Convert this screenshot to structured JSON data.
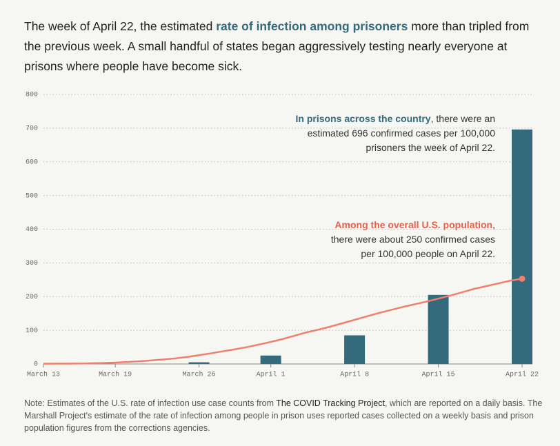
{
  "chart_data": {
    "type": "bar",
    "title": [
      "The week of April 22, the estimated ",
      "rate of infection among prisoners",
      " more than tripled from the previous week. A small handful of states began aggressively testing nearly everyone at prisons where people have become sick."
    ],
    "annotations": [
      [
        "In prisons across the country",
        ", there were an estimated 696 confirmed cases per 100,000 prisoners the week of April 22."
      ],
      [
        "Among the overall U.S. population",
        ", there were about 250 confirmed cases per 100,000 people on April 22."
      ]
    ],
    "note": [
      "Note: Estimates of the U.S. rate of infection use case counts from ",
      "The COVID Tracking Project",
      ", which are reported on a daily basis. The Marshall Project's estimate of the rate of infection among people in prison uses reported cases collected on a weekly basis and prison population figures from the corrections agencies."
    ],
    "xlim": [
      "March 13",
      "April 22"
    ],
    "xticks": [
      "March 13",
      "March 19",
      "March 26",
      "April 1",
      "April 8",
      "April 15",
      "April 22"
    ],
    "ylim": [
      0,
      800
    ],
    "yticks": [
      0,
      100,
      200,
      300,
      400,
      500,
      600,
      700,
      800
    ],
    "grid": true,
    "series": [
      {
        "type": "bar",
        "color": "#336a7c",
        "x": [
          "March 26",
          "April 1",
          "April 8",
          "April 15",
          "April 22"
        ],
        "values": [
          5,
          25,
          85,
          205,
          696
        ]
      },
      {
        "type": "line",
        "color": "#f07f6b",
        "x": [
          "March 13",
          "March 14",
          "March 15",
          "March 16",
          "March 17",
          "March 18",
          "March 19",
          "March 20",
          "March 21",
          "March 22",
          "March 23",
          "March 24",
          "March 25",
          "March 26",
          "March 27",
          "March 28",
          "March 29",
          "March 30",
          "March 31",
          "April 1",
          "April 2",
          "April 3",
          "April 4",
          "April 5",
          "April 6",
          "April 7",
          "April 8",
          "April 9",
          "April 10",
          "April 11",
          "April 12",
          "April 13",
          "April 14",
          "April 15",
          "April 16",
          "April 17",
          "April 18",
          "April 19",
          "April 20",
          "April 21",
          "April 22"
        ],
        "values": [
          0.7,
          0.9,
          1.1,
          1.4,
          2,
          2.9,
          4.2,
          6,
          8,
          10.4,
          13.4,
          16.5,
          20.7,
          26,
          31.6,
          37.7,
          43.5,
          50,
          57.5,
          65.5,
          74,
          84,
          94,
          102,
          111,
          121,
          131,
          141,
          151,
          160,
          169,
          177,
          185,
          194,
          203,
          213,
          223,
          231,
          239,
          247,
          253
        ]
      }
    ]
  }
}
